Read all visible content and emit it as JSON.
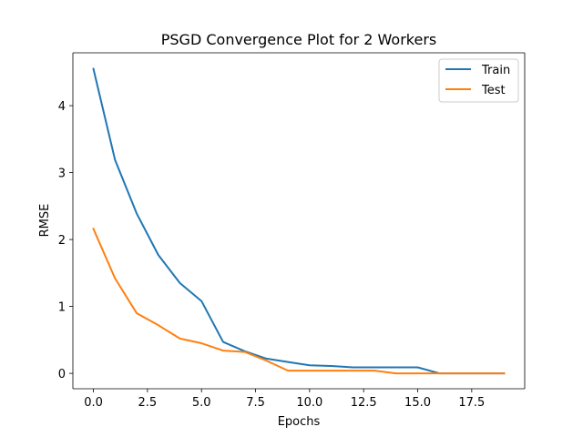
{
  "chart_data": {
    "type": "line",
    "title": "PSGD Convergence Plot for 2 Workers",
    "xlabel": "Epochs",
    "ylabel": "RMSE",
    "xlim": [
      -0.95,
      19.95
    ],
    "ylim": [
      -0.23,
      4.79
    ],
    "xticks": [
      0,
      2.5,
      5,
      7.5,
      10,
      12.5,
      15,
      17.5
    ],
    "xtick_labels": [
      "0.0",
      "2.5",
      "5.0",
      "7.5",
      "10.0",
      "12.5",
      "15.0",
      "17.5"
    ],
    "yticks": [
      0,
      1,
      2,
      3,
      4
    ],
    "ytick_labels": [
      "0",
      "1",
      "2",
      "3",
      "4"
    ],
    "grid": false,
    "legend_position": "upper-right",
    "x": [
      0,
      1,
      2,
      3,
      4,
      5,
      6,
      7,
      8,
      9,
      10,
      11,
      12,
      13,
      14,
      15,
      16,
      17,
      18,
      19
    ],
    "series": [
      {
        "name": "Train",
        "color": "#1f77b4",
        "values": [
          4.55,
          3.19,
          2.39,
          1.77,
          1.35,
          1.08,
          0.47,
          0.33,
          0.22,
          0.17,
          0.12,
          0.11,
          0.09,
          0.09,
          0.09,
          0.09,
          0.0,
          0.0,
          0.0,
          0.0
        ]
      },
      {
        "name": "Test",
        "color": "#ff7f0e",
        "values": [
          2.16,
          1.42,
          0.9,
          0.72,
          0.52,
          0.45,
          0.34,
          0.32,
          0.19,
          0.04,
          0.04,
          0.04,
          0.04,
          0.04,
          0.0,
          0.0,
          0.0,
          0.0,
          0.0,
          0.0
        ]
      }
    ]
  }
}
